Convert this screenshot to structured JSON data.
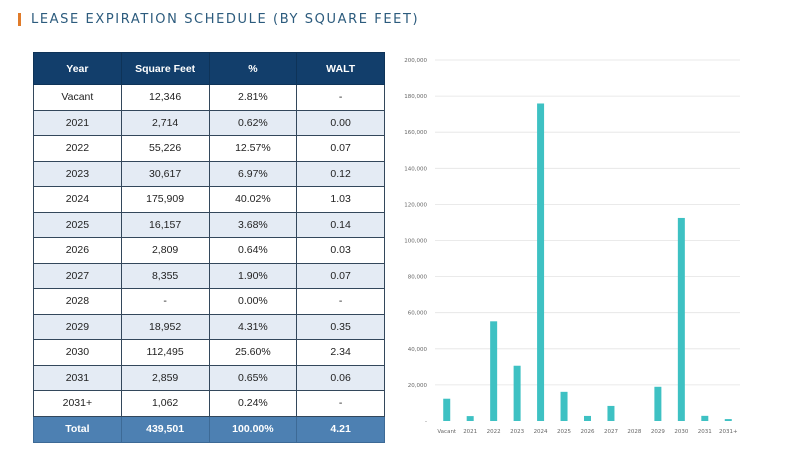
{
  "title": "LEASE EXPIRATION SCHEDULE (BY SQUARE FEET)",
  "table": {
    "headers": [
      "Year",
      "Square Feet",
      "%",
      "WALT"
    ],
    "rows": [
      [
        "Vacant",
        "12,346",
        "2.81%",
        "-"
      ],
      [
        "2021",
        "2,714",
        "0.62%",
        "0.00"
      ],
      [
        "2022",
        "55,226",
        "12.57%",
        "0.07"
      ],
      [
        "2023",
        "30,617",
        "6.97%",
        "0.12"
      ],
      [
        "2024",
        "175,909",
        "40.02%",
        "1.03"
      ],
      [
        "2025",
        "16,157",
        "3.68%",
        "0.14"
      ],
      [
        "2026",
        "2,809",
        "0.64%",
        "0.03"
      ],
      [
        "2027",
        "8,355",
        "1.90%",
        "0.07"
      ],
      [
        "2028",
        "-",
        "0.00%",
        "-"
      ],
      [
        "2029",
        "18,952",
        "4.31%",
        "0.35"
      ],
      [
        "2030",
        "112,495",
        "25.60%",
        "2.34"
      ],
      [
        "2031",
        "2,859",
        "0.65%",
        "0.06"
      ],
      [
        "2031+",
        "1,062",
        "0.24%",
        "-"
      ]
    ],
    "total": [
      "Total",
      "439,501",
      "100.00%",
      "4.21"
    ]
  },
  "chart_data": {
    "type": "bar",
    "categories": [
      "Vacant",
      "2021",
      "2022",
      "2023",
      "2024",
      "2025",
      "2026",
      "2027",
      "2028",
      "2029",
      "2030",
      "2031",
      "2031+"
    ],
    "values": [
      12346,
      2714,
      55226,
      30617,
      175909,
      16157,
      2809,
      8355,
      0,
      18952,
      112495,
      2859,
      1062
    ],
    "ylim": [
      0,
      200000
    ],
    "yticks": [
      0,
      20000,
      40000,
      60000,
      80000,
      100000,
      120000,
      140000,
      160000,
      180000,
      200000
    ],
    "ytick_labels": [
      "-",
      "20,000",
      "40,000",
      "60,000",
      "80,000",
      "100,000",
      "120,000",
      "140,000",
      "160,000",
      "180,000",
      "200,000"
    ],
    "grid": true,
    "bar_color": "#3ec1c3",
    "title": "",
    "xlabel": "",
    "ylabel": ""
  },
  "colors": {
    "accent": "#e07b2a",
    "title_text": "#2c5b7d",
    "header_bg": "#123e6b",
    "total_bg": "#4d80b2",
    "stripe_bg": "#e4ebf4"
  }
}
